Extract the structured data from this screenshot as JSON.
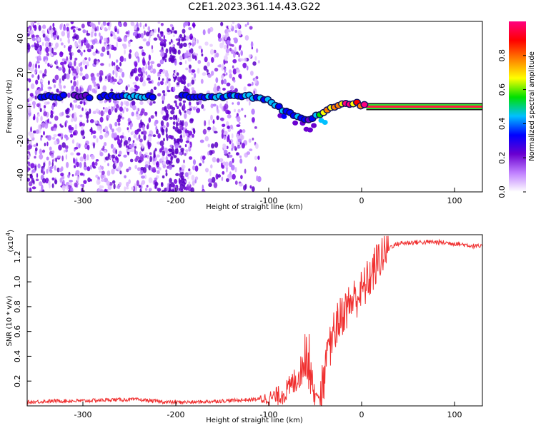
{
  "title": "C2E1.2023.361.14.43.G22",
  "chart_data": [
    {
      "type": "heatmap",
      "description": "spectrogram",
      "xlabel": "Height of straight line (km)",
      "ylabel": "Frequency (Hz)",
      "xlim": [
        -360,
        130
      ],
      "ylim": [
        -50,
        50
      ],
      "xticks": [
        -300,
        -200,
        -100,
        0,
        100
      ],
      "yticks": [
        -40,
        -20,
        0,
        20,
        40
      ],
      "colorbar": {
        "label": "Normalized spectral amplitude",
        "range": [
          0,
          1
        ],
        "ticks": [
          0.0,
          0.2,
          0.4,
          0.6,
          0.8
        ],
        "colors": [
          "#ffffff",
          "#c080ff",
          "#6a00d0",
          "#0000ff",
          "#00c0ff",
          "#00e000",
          "#ffff00",
          "#ff8000",
          "#ff0000",
          "#ff0080"
        ]
      },
      "tone_track": {
        "x": [
          -345,
          -300,
          -250,
          -200,
          -150,
          -120,
          -100,
          -85,
          -70,
          -55,
          -45,
          -35,
          -20,
          -5,
          5,
          130
        ],
        "y": [
          6,
          6,
          6,
          6,
          6,
          6,
          4,
          -2,
          -6,
          -8,
          -4,
          -1,
          1,
          2,
          0,
          0
        ],
        "amplitude": [
          0.35,
          0.3,
          0.45,
          0.3,
          0.45,
          0.45,
          0.45,
          0.45,
          0.4,
          0.35,
          0.55,
          0.75,
          0.9,
          0.95,
          1.0,
          1.0
        ]
      }
    },
    {
      "type": "line",
      "xlabel": "Height of straight line (km)",
      "ylabel": "SNR (10 * v/v)",
      "y_multiplier": "(x10",
      "y_multiplier_exp": "4",
      "xlim": [
        -360,
        130
      ],
      "ylim": [
        0,
        1.38
      ],
      "xticks": [
        -300,
        -200,
        -100,
        0,
        100
      ],
      "yticks": [
        0.2,
        0.4,
        0.6,
        0.8,
        1.0,
        1.2
      ],
      "line_color": "#f03030",
      "series": [
        {
          "x": [
            -360,
            -330,
            -300,
            -270,
            -240,
            -210,
            -180,
            -150,
            -120,
            -100,
            -90,
            -80,
            -70,
            -60,
            -50,
            -45,
            -40,
            -35,
            -30,
            -20,
            -10,
            0,
            10,
            20,
            30,
            40,
            60,
            80,
            100,
            120,
            130
          ],
          "y": [
            0.03,
            0.04,
            0.04,
            0.05,
            0.05,
            0.03,
            0.03,
            0.04,
            0.05,
            0.06,
            0.08,
            0.12,
            0.22,
            0.35,
            0.1,
            0.06,
            0.25,
            0.45,
            0.6,
            0.75,
            0.85,
            0.92,
            1.05,
            1.2,
            1.28,
            1.31,
            1.32,
            1.32,
            1.31,
            1.29,
            1.28
          ]
        }
      ]
    }
  ]
}
